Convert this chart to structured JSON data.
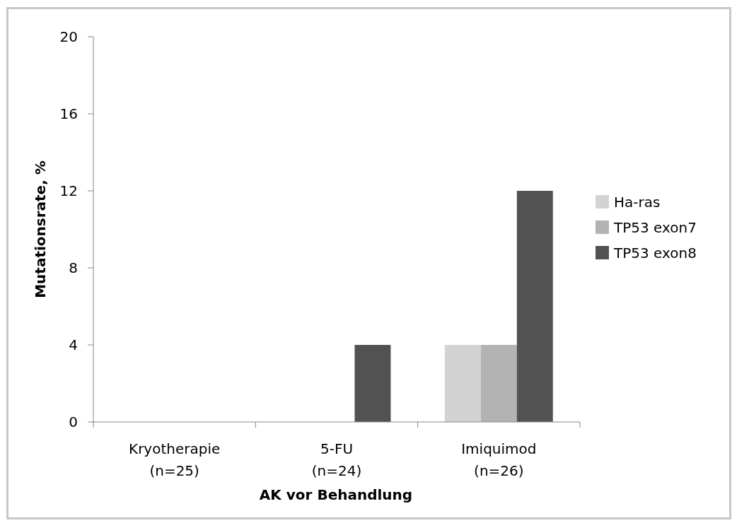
{
  "chart_data": {
    "type": "bar",
    "xlabel": "AK vor Behandlung",
    "ylabel": "Mutationsrate, %",
    "categories": [
      "Kryotherapie\n(n=25)",
      "5-FU\n(n=24)",
      "Imiquimod\n(n=26)"
    ],
    "series": [
      {
        "name": "Ha-ras",
        "color": "#d3d3d3",
        "values": [
          0,
          0,
          4
        ]
      },
      {
        "name": "TP53 exon7",
        "color": "#b3b3b3",
        "values": [
          0,
          0,
          4
        ]
      },
      {
        "name": "TP53 exon8",
        "color": "#525252",
        "values": [
          0,
          4,
          12
        ]
      }
    ],
    "ylim": [
      0,
      20
    ],
    "yticks": [
      0,
      4,
      8,
      12,
      16,
      20
    ],
    "grid": false,
    "legend": "right"
  }
}
